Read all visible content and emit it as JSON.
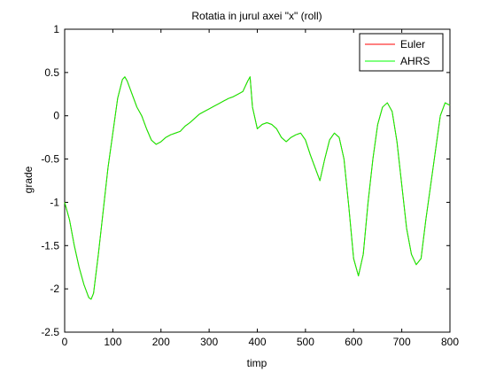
{
  "chart_data": {
    "type": "line",
    "title": "Rotatia in jurul axei \"x\" (roll)",
    "xlabel": "timp",
    "ylabel": "grade",
    "xlim": [
      0,
      800
    ],
    "ylim": [
      -2.5,
      1
    ],
    "xticks": [
      0,
      100,
      200,
      300,
      400,
      500,
      600,
      700,
      800
    ],
    "yticks": [
      -2.5,
      -2,
      -1.5,
      -1,
      -0.5,
      0,
      0.5,
      1
    ],
    "xtick_labels": [
      "0",
      "100",
      "200",
      "300",
      "400",
      "500",
      "600",
      "700",
      "800"
    ],
    "ytick_labels": [
      "-2.5",
      "-2",
      "-1.5",
      "-1",
      "-0.5",
      "0",
      "0.5",
      "1"
    ],
    "grid": false,
    "legend_position": "top-right",
    "series": [
      {
        "name": "Euler",
        "color": "#ff0000",
        "x": [
          0,
          10,
          20,
          30,
          40,
          50,
          55,
          60,
          70,
          80,
          90,
          100,
          110,
          120,
          125,
          130,
          140,
          150,
          160,
          170,
          180,
          190,
          200,
          210,
          220,
          230,
          240,
          250,
          260,
          270,
          280,
          290,
          300,
          310,
          320,
          330,
          340,
          350,
          360,
          370,
          380,
          385,
          390,
          400,
          410,
          420,
          430,
          440,
          450,
          460,
          470,
          480,
          490,
          500,
          510,
          520,
          530,
          540,
          550,
          560,
          570,
          580,
          590,
          600,
          610,
          620,
          630,
          640,
          650,
          660,
          670,
          680,
          690,
          700,
          710,
          720,
          730,
          740,
          750,
          760,
          770,
          780,
          790,
          800
        ],
        "values": [
          -1.0,
          -1.2,
          -1.5,
          -1.75,
          -1.95,
          -2.1,
          -2.12,
          -2.05,
          -1.6,
          -1.1,
          -0.6,
          -0.2,
          0.2,
          0.42,
          0.45,
          0.4,
          0.25,
          0.1,
          0.0,
          -0.15,
          -0.28,
          -0.33,
          -0.3,
          -0.25,
          -0.22,
          -0.2,
          -0.18,
          -0.12,
          -0.08,
          -0.03,
          0.02,
          0.05,
          0.08,
          0.11,
          0.14,
          0.17,
          0.2,
          0.22,
          0.25,
          0.28,
          0.4,
          0.45,
          0.1,
          -0.15,
          -0.1,
          -0.08,
          -0.1,
          -0.15,
          -0.25,
          -0.3,
          -0.25,
          -0.22,
          -0.2,
          -0.28,
          -0.45,
          -0.6,
          -0.75,
          -0.5,
          -0.28,
          -0.2,
          -0.25,
          -0.5,
          -1.05,
          -1.65,
          -1.85,
          -1.6,
          -1.0,
          -0.5,
          -0.1,
          0.1,
          0.15,
          0.05,
          -0.3,
          -0.8,
          -1.3,
          -1.6,
          -1.72,
          -1.65,
          -1.2,
          -0.8,
          -0.4,
          0.0,
          0.15,
          0.12
        ]
      },
      {
        "name": "AHRS",
        "color": "#00ff00",
        "x": [
          0,
          10,
          20,
          30,
          40,
          50,
          55,
          60,
          70,
          80,
          90,
          100,
          110,
          120,
          125,
          130,
          140,
          150,
          160,
          170,
          180,
          190,
          200,
          210,
          220,
          230,
          240,
          250,
          260,
          270,
          280,
          290,
          300,
          310,
          320,
          330,
          340,
          350,
          360,
          370,
          380,
          385,
          390,
          400,
          410,
          420,
          430,
          440,
          450,
          460,
          470,
          480,
          490,
          500,
          510,
          520,
          530,
          540,
          550,
          560,
          570,
          580,
          590,
          600,
          610,
          620,
          630,
          640,
          650,
          660,
          670,
          680,
          690,
          700,
          710,
          720,
          730,
          740,
          750,
          760,
          770,
          780,
          790,
          800
        ],
        "values": [
          -1.0,
          -1.2,
          -1.5,
          -1.75,
          -1.95,
          -2.1,
          -2.12,
          -2.05,
          -1.6,
          -1.1,
          -0.6,
          -0.2,
          0.2,
          0.42,
          0.45,
          0.4,
          0.25,
          0.1,
          0.0,
          -0.15,
          -0.28,
          -0.33,
          -0.3,
          -0.25,
          -0.22,
          -0.2,
          -0.18,
          -0.12,
          -0.08,
          -0.03,
          0.02,
          0.05,
          0.08,
          0.11,
          0.14,
          0.17,
          0.2,
          0.22,
          0.25,
          0.28,
          0.4,
          0.45,
          0.1,
          -0.15,
          -0.1,
          -0.08,
          -0.1,
          -0.15,
          -0.25,
          -0.3,
          -0.25,
          -0.22,
          -0.2,
          -0.28,
          -0.45,
          -0.6,
          -0.75,
          -0.5,
          -0.28,
          -0.2,
          -0.25,
          -0.5,
          -1.05,
          -1.65,
          -1.85,
          -1.6,
          -1.0,
          -0.5,
          -0.1,
          0.1,
          0.15,
          0.05,
          -0.3,
          -0.8,
          -1.3,
          -1.6,
          -1.72,
          -1.65,
          -1.2,
          -0.8,
          -0.4,
          0.0,
          0.15,
          0.12
        ]
      }
    ]
  }
}
